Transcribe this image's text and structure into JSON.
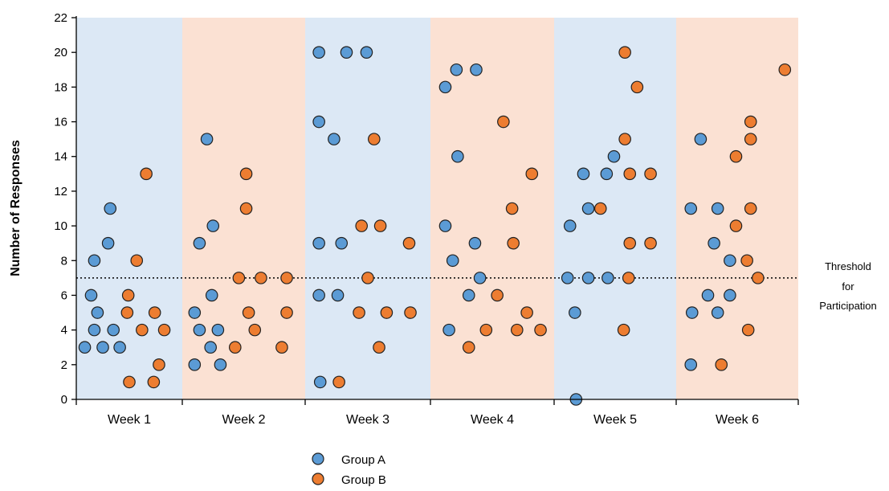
{
  "chart_data": {
    "type": "scatter",
    "title": "",
    "xlabel": "",
    "ylabel": "Number of Responses",
    "ylim": [
      0,
      22
    ],
    "yticks": [
      0,
      2,
      4,
      6,
      8,
      10,
      12,
      14,
      16,
      18,
      20,
      22
    ],
    "grid": false,
    "legend_position": "bottom-center",
    "categories": [
      "Week 1",
      "Week 2",
      "Week 3",
      "Week 4",
      "Week 5",
      "Week 6"
    ],
    "band_colors": [
      "#dce8f5",
      "#fbe1d3",
      "#dce8f5",
      "#fbe1d3",
      "#dce8f5",
      "#fbe1d3"
    ],
    "threshold": {
      "value": 7,
      "label_lines": [
        "Threshold",
        "for",
        "Participation"
      ]
    },
    "series": [
      {
        "name": "Group A",
        "color": "#5b9bd5",
        "points": [
          {
            "week": 1,
            "offset": 0.08,
            "y": 3
          },
          {
            "week": 1,
            "offset": 0.14,
            "y": 6
          },
          {
            "week": 1,
            "offset": 0.17,
            "y": 8
          },
          {
            "week": 1,
            "offset": 0.17,
            "y": 4
          },
          {
            "week": 1,
            "offset": 0.2,
            "y": 5
          },
          {
            "week": 1,
            "offset": 0.25,
            "y": 3
          },
          {
            "week": 1,
            "offset": 0.3,
            "y": 9
          },
          {
            "week": 1,
            "offset": 0.32,
            "y": 11
          },
          {
            "week": 1,
            "offset": 0.35,
            "y": 4
          },
          {
            "week": 1,
            "offset": 0.41,
            "y": 3
          },
          {
            "week": 2,
            "offset": 0.1,
            "y": 2
          },
          {
            "week": 2,
            "offset": 0.1,
            "y": 5
          },
          {
            "week": 2,
            "offset": 0.14,
            "y": 9
          },
          {
            "week": 2,
            "offset": 0.14,
            "y": 4
          },
          {
            "week": 2,
            "offset": 0.2,
            "y": 15
          },
          {
            "week": 2,
            "offset": 0.23,
            "y": 3
          },
          {
            "week": 2,
            "offset": 0.24,
            "y": 6
          },
          {
            "week": 2,
            "offset": 0.25,
            "y": 10
          },
          {
            "week": 2,
            "offset": 0.29,
            "y": 4
          },
          {
            "week": 2,
            "offset": 0.31,
            "y": 2
          },
          {
            "week": 3,
            "offset": 0.11,
            "y": 20
          },
          {
            "week": 3,
            "offset": 0.11,
            "y": 16
          },
          {
            "week": 3,
            "offset": 0.11,
            "y": 9
          },
          {
            "week": 3,
            "offset": 0.11,
            "y": 6
          },
          {
            "week": 3,
            "offset": 0.12,
            "y": 1
          },
          {
            "week": 3,
            "offset": 0.23,
            "y": 15
          },
          {
            "week": 3,
            "offset": 0.26,
            "y": 6
          },
          {
            "week": 3,
            "offset": 0.29,
            "y": 9
          },
          {
            "week": 3,
            "offset": 0.33,
            "y": 20
          },
          {
            "week": 3,
            "offset": 0.49,
            "y": 20
          },
          {
            "week": 4,
            "offset": 0.12,
            "y": 18
          },
          {
            "week": 4,
            "offset": 0.12,
            "y": 10
          },
          {
            "week": 4,
            "offset": 0.15,
            "y": 4
          },
          {
            "week": 4,
            "offset": 0.18,
            "y": 8
          },
          {
            "week": 4,
            "offset": 0.21,
            "y": 19
          },
          {
            "week": 4,
            "offset": 0.22,
            "y": 14
          },
          {
            "week": 4,
            "offset": 0.31,
            "y": 6
          },
          {
            "week": 4,
            "offset": 0.36,
            "y": 9
          },
          {
            "week": 4,
            "offset": 0.37,
            "y": 19
          },
          {
            "week": 4,
            "offset": 0.4,
            "y": 7
          },
          {
            "week": 5,
            "offset": 0.13,
            "y": 10
          },
          {
            "week": 5,
            "offset": 0.11,
            "y": 7
          },
          {
            "week": 5,
            "offset": 0.17,
            "y": 5
          },
          {
            "week": 5,
            "offset": 0.18,
            "y": 0
          },
          {
            "week": 5,
            "offset": 0.24,
            "y": 13
          },
          {
            "week": 5,
            "offset": 0.28,
            "y": 11
          },
          {
            "week": 5,
            "offset": 0.28,
            "y": 7
          },
          {
            "week": 5,
            "offset": 0.43,
            "y": 13
          },
          {
            "week": 5,
            "offset": 0.44,
            "y": 7
          },
          {
            "week": 5,
            "offset": 0.49,
            "y": 14
          },
          {
            "week": 6,
            "offset": 0.12,
            "y": 11
          },
          {
            "week": 6,
            "offset": 0.13,
            "y": 5
          },
          {
            "week": 6,
            "offset": 0.12,
            "y": 2
          },
          {
            "week": 6,
            "offset": 0.2,
            "y": 15
          },
          {
            "week": 6,
            "offset": 0.26,
            "y": 6
          },
          {
            "week": 6,
            "offset": 0.31,
            "y": 9
          },
          {
            "week": 6,
            "offset": 0.34,
            "y": 11
          },
          {
            "week": 6,
            "offset": 0.34,
            "y": 5
          },
          {
            "week": 6,
            "offset": 0.44,
            "y": 8
          },
          {
            "week": 6,
            "offset": 0.44,
            "y": 6
          }
        ]
      },
      {
        "name": "Group B",
        "color": "#ed7d31",
        "points": [
          {
            "week": 1,
            "offset": 0.5,
            "y": 1
          },
          {
            "week": 1,
            "offset": 0.48,
            "y": 5
          },
          {
            "week": 1,
            "offset": 0.49,
            "y": 6
          },
          {
            "week": 1,
            "offset": 0.57,
            "y": 8
          },
          {
            "week": 1,
            "offset": 0.62,
            "y": 4
          },
          {
            "week": 1,
            "offset": 0.66,
            "y": 13
          },
          {
            "week": 1,
            "offset": 0.73,
            "y": 1
          },
          {
            "week": 1,
            "offset": 0.74,
            "y": 5
          },
          {
            "week": 1,
            "offset": 0.78,
            "y": 2
          },
          {
            "week": 1,
            "offset": 0.83,
            "y": 4
          },
          {
            "week": 2,
            "offset": 0.43,
            "y": 3
          },
          {
            "week": 2,
            "offset": 0.46,
            "y": 7
          },
          {
            "week": 2,
            "offset": 0.52,
            "y": 13
          },
          {
            "week": 2,
            "offset": 0.52,
            "y": 11
          },
          {
            "week": 2,
            "offset": 0.54,
            "y": 5
          },
          {
            "week": 2,
            "offset": 0.59,
            "y": 4
          },
          {
            "week": 2,
            "offset": 0.64,
            "y": 7
          },
          {
            "week": 2,
            "offset": 0.81,
            "y": 3
          },
          {
            "week": 2,
            "offset": 0.85,
            "y": 7
          },
          {
            "week": 2,
            "offset": 0.85,
            "y": 5
          },
          {
            "week": 3,
            "offset": 0.27,
            "y": 1
          },
          {
            "week": 3,
            "offset": 0.43,
            "y": 5
          },
          {
            "week": 3,
            "offset": 0.45,
            "y": 10
          },
          {
            "week": 3,
            "offset": 0.5,
            "y": 7
          },
          {
            "week": 3,
            "offset": 0.55,
            "y": 15
          },
          {
            "week": 3,
            "offset": 0.59,
            "y": 3
          },
          {
            "week": 3,
            "offset": 0.6,
            "y": 10
          },
          {
            "week": 3,
            "offset": 0.65,
            "y": 5
          },
          {
            "week": 3,
            "offset": 0.83,
            "y": 9
          },
          {
            "week": 3,
            "offset": 0.84,
            "y": 5
          },
          {
            "week": 4,
            "offset": 0.31,
            "y": 3
          },
          {
            "week": 4,
            "offset": 0.45,
            "y": 4
          },
          {
            "week": 4,
            "offset": 0.54,
            "y": 6
          },
          {
            "week": 4,
            "offset": 0.59,
            "y": 16
          },
          {
            "week": 4,
            "offset": 0.66,
            "y": 11
          },
          {
            "week": 4,
            "offset": 0.67,
            "y": 9
          },
          {
            "week": 4,
            "offset": 0.7,
            "y": 4
          },
          {
            "week": 4,
            "offset": 0.78,
            "y": 5
          },
          {
            "week": 4,
            "offset": 0.82,
            "y": 13
          },
          {
            "week": 4,
            "offset": 0.89,
            "y": 4
          },
          {
            "week": 5,
            "offset": 0.38,
            "y": 11
          },
          {
            "week": 5,
            "offset": 0.57,
            "y": 4
          },
          {
            "week": 5,
            "offset": 0.58,
            "y": 15
          },
          {
            "week": 5,
            "offset": 0.58,
            "y": 20
          },
          {
            "week": 5,
            "offset": 0.61,
            "y": 7
          },
          {
            "week": 5,
            "offset": 0.62,
            "y": 9
          },
          {
            "week": 5,
            "offset": 0.62,
            "y": 13
          },
          {
            "week": 5,
            "offset": 0.68,
            "y": 18
          },
          {
            "week": 5,
            "offset": 0.79,
            "y": 9
          },
          {
            "week": 5,
            "offset": 0.79,
            "y": 13
          },
          {
            "week": 6,
            "offset": 0.37,
            "y": 2
          },
          {
            "week": 6,
            "offset": 0.49,
            "y": 14
          },
          {
            "week": 6,
            "offset": 0.49,
            "y": 10
          },
          {
            "week": 6,
            "offset": 0.59,
            "y": 4
          },
          {
            "week": 6,
            "offset": 0.58,
            "y": 8
          },
          {
            "week": 6,
            "offset": 0.61,
            "y": 16
          },
          {
            "week": 6,
            "offset": 0.61,
            "y": 15
          },
          {
            "week": 6,
            "offset": 0.61,
            "y": 11
          },
          {
            "week": 6,
            "offset": 0.67,
            "y": 7
          },
          {
            "week": 6,
            "offset": 0.89,
            "y": 19
          }
        ]
      }
    ]
  }
}
